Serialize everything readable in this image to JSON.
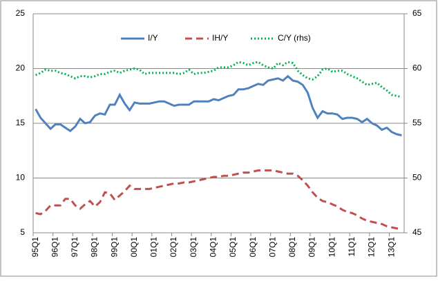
{
  "chart_data": {
    "type": "line",
    "categories": [
      "95Q1",
      null,
      null,
      null,
      "96Q1",
      null,
      null,
      null,
      "97Q1",
      null,
      null,
      null,
      "98Q1",
      null,
      null,
      null,
      "99Q1",
      null,
      null,
      null,
      "00Q1",
      null,
      null,
      null,
      "01Q1",
      null,
      null,
      null,
      "02Q1",
      null,
      null,
      null,
      "03Q1",
      null,
      null,
      null,
      "04Q1",
      null,
      null,
      null,
      "05Q1",
      null,
      null,
      null,
      "06Q1",
      null,
      null,
      null,
      "07Q1",
      null,
      null,
      null,
      "08Q1",
      null,
      null,
      null,
      "09Q1",
      null,
      null,
      null,
      "10Q1",
      null,
      null,
      null,
      "11Q1",
      null,
      null,
      null,
      "12Q1",
      null,
      null,
      null,
      "13Q1",
      null,
      null
    ],
    "series": [
      {
        "name": "I/Y",
        "color": "#4f81bd",
        "line_style": "solid",
        "values": [
          16.3,
          15.5,
          15.0,
          14.5,
          14.9,
          14.9,
          14.6,
          14.3,
          14.7,
          15.4,
          15.0,
          15.1,
          15.7,
          15.9,
          15.8,
          16.7,
          16.7,
          17.6,
          16.8,
          16.2,
          16.9,
          16.8,
          16.8,
          16.8,
          16.9,
          17.0,
          17.0,
          16.8,
          16.6,
          16.7,
          16.7,
          16.7,
          17.0,
          17.0,
          17.0,
          17.0,
          17.2,
          17.1,
          17.3,
          17.5,
          17.6,
          18.1,
          18.1,
          18.2,
          18.4,
          18.6,
          18.5,
          18.9,
          19.0,
          19.1,
          18.9,
          19.3,
          18.9,
          18.8,
          18.5,
          17.8,
          16.4,
          15.5,
          16.1,
          15.9,
          15.9,
          15.8,
          15.4,
          15.5,
          15.5,
          15.4,
          15.1,
          15.4,
          15.0,
          14.8,
          14.4,
          14.6,
          14.2,
          14.0,
          13.9
        ]
      },
      {
        "name": "IH/Y",
        "color": "#c0504d",
        "line_style": "dashed",
        "values": [
          6.8,
          6.7,
          7.0,
          7.5,
          7.5,
          7.5,
          8.1,
          8.1,
          7.5,
          7.2,
          7.6,
          7.9,
          7.4,
          7.8,
          8.7,
          8.6,
          8.0,
          8.4,
          8.8,
          9.3,
          9.0,
          9.0,
          9.0,
          9.0,
          9.1,
          9.2,
          9.3,
          9.4,
          9.5,
          9.5,
          9.6,
          9.6,
          9.7,
          9.8,
          9.9,
          10.0,
          10.1,
          10.1,
          10.2,
          10.2,
          10.3,
          10.4,
          10.5,
          10.5,
          10.6,
          10.7,
          10.7,
          10.7,
          10.7,
          10.6,
          10.5,
          10.4,
          10.4,
          10.2,
          9.8,
          9.3,
          8.7,
          8.2,
          7.9,
          7.8,
          7.6,
          7.4,
          7.1,
          6.9,
          6.8,
          6.6,
          6.3,
          6.1,
          6.0,
          5.9,
          5.8,
          5.6,
          5.5,
          5.4,
          5.3
        ]
      },
      {
        "name": "C/Y (rhs)",
        "color": "#00b050",
        "line_style": "dotted",
        "axis": "y2",
        "values": [
          59.4,
          59.6,
          59.9,
          59.8,
          59.8,
          59.6,
          59.5,
          59.3,
          59.1,
          59.3,
          59.3,
          59.2,
          59.3,
          59.5,
          59.5,
          59.7,
          59.8,
          59.6,
          59.8,
          59.9,
          60.0,
          59.9,
          59.5,
          59.6,
          59.6,
          59.6,
          59.6,
          59.6,
          59.6,
          59.5,
          59.6,
          59.9,
          59.5,
          59.6,
          59.6,
          59.7,
          59.8,
          60.1,
          60.1,
          60.1,
          60.3,
          60.6,
          60.5,
          60.3,
          60.5,
          60.6,
          60.3,
          60.1,
          60.0,
          60.5,
          60.3,
          60.6,
          60.5,
          59.8,
          59.4,
          59.1,
          59.0,
          59.3,
          59.9,
          60.0,
          59.7,
          59.8,
          59.8,
          59.5,
          59.3,
          59.1,
          58.8,
          58.5,
          58.6,
          58.7,
          58.3,
          58.0,
          57.6,
          57.5,
          57.4
        ]
      }
    ],
    "ylim": [
      5,
      25
    ],
    "yticks": [
      5,
      10,
      15,
      20,
      25
    ],
    "y2lim": [
      45,
      65
    ],
    "y2ticks": [
      45,
      50,
      55,
      60,
      65
    ],
    "grid": true,
    "legend": "top"
  }
}
